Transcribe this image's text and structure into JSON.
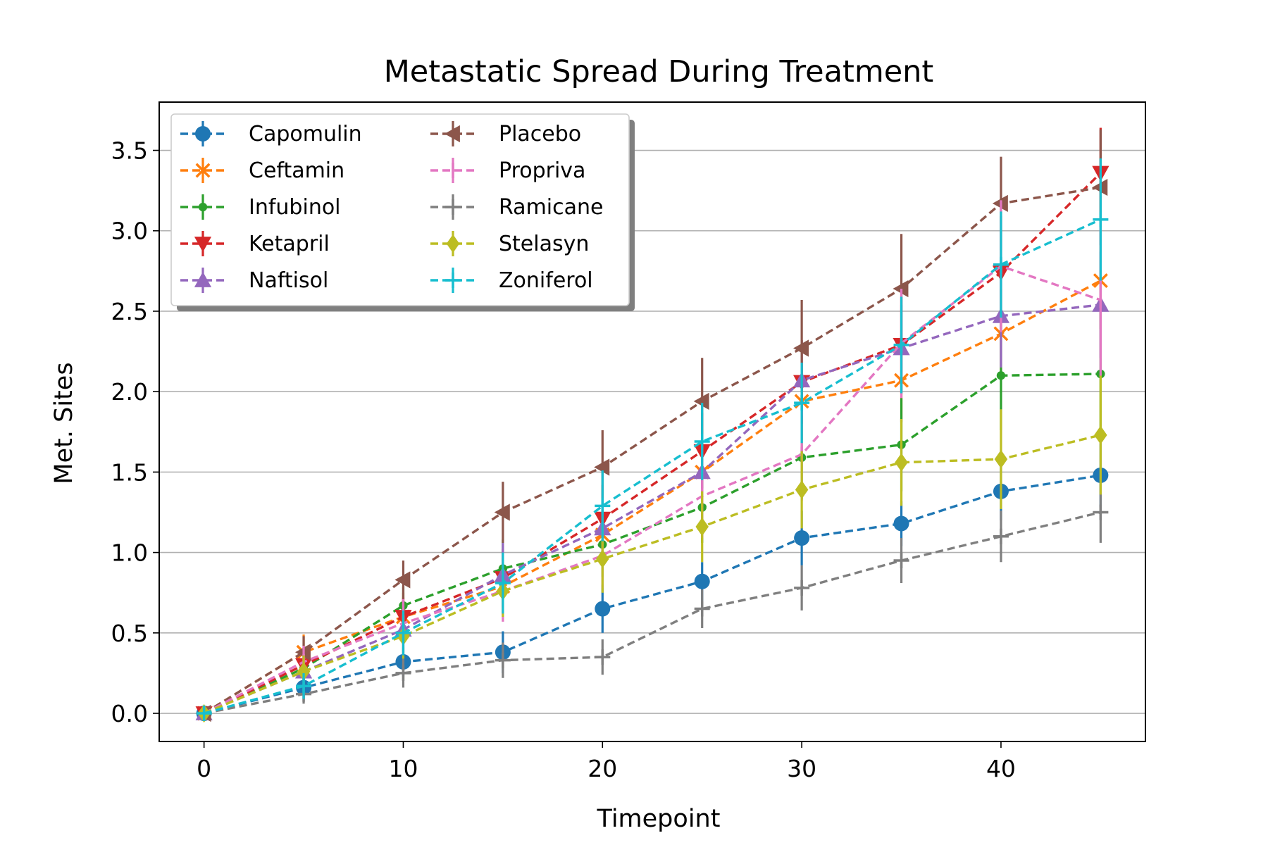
{
  "chart_data": {
    "type": "line",
    "title": "Metastatic Spread During Treatment",
    "xlabel": "Timepoint",
    "ylabel": "Met. Sites",
    "xlim": [
      -2.25,
      47.25
    ],
    "ylim": [
      -0.175,
      3.8
    ],
    "xticks": [
      "0",
      "10",
      "20",
      "30",
      "40"
    ],
    "yticks": [
      "0.0",
      "0.5",
      "1.0",
      "1.5",
      "2.0",
      "2.5",
      "3.0",
      "3.5"
    ],
    "grid": "horizontal",
    "legend_position": "upper-left",
    "x": [
      0,
      5,
      10,
      15,
      20,
      25,
      30,
      35,
      40,
      45
    ],
    "series": [
      {
        "name": "Capomulin",
        "color": "#1f77b4",
        "marker": "circle",
        "values": [
          0.0,
          0.16,
          0.32,
          0.38,
          0.65,
          0.82,
          1.09,
          1.18,
          1.38,
          1.48
        ],
        "errors": [
          0.0,
          0.07,
          0.09,
          0.13,
          0.15,
          0.12,
          0.17,
          0.14,
          0.18,
          0.2
        ]
      },
      {
        "name": "Ceftamin",
        "color": "#ff7f0e",
        "marker": "x",
        "values": [
          0.0,
          0.38,
          0.6,
          0.79,
          1.11,
          1.5,
          1.94,
          2.07,
          2.36,
          2.69
        ],
        "errors": [
          0.0,
          0.11,
          0.15,
          0.18,
          0.2,
          0.23,
          0.24,
          0.26,
          0.28,
          0.3
        ]
      },
      {
        "name": "Infubinol",
        "color": "#2ca02c",
        "marker": "point",
        "values": [
          0.0,
          0.28,
          0.67,
          0.9,
          1.05,
          1.28,
          1.59,
          1.67,
          2.1,
          2.11
        ],
        "errors": [
          0.0,
          0.1,
          0.12,
          0.18,
          0.2,
          0.22,
          0.26,
          0.29,
          0.34,
          0.4
        ]
      },
      {
        "name": "Ketapril",
        "color": "#d62728",
        "marker": "triangle-down",
        "values": [
          0.0,
          0.3,
          0.6,
          0.84,
          1.21,
          1.63,
          2.06,
          2.29,
          2.74,
          3.36
        ],
        "errors": [
          0.0,
          0.1,
          0.12,
          0.18,
          0.21,
          0.24,
          0.26,
          0.3,
          0.35,
          0.28
        ]
      },
      {
        "name": "Naftisol",
        "color": "#9467bd",
        "marker": "triangle-up",
        "values": [
          0.0,
          0.26,
          0.52,
          0.86,
          1.15,
          1.5,
          2.07,
          2.27,
          2.47,
          2.54
        ],
        "errors": [
          0.0,
          0.09,
          0.16,
          0.2,
          0.22,
          0.24,
          0.25,
          0.27,
          0.32,
          0.33
        ]
      },
      {
        "name": "Placebo",
        "color": "#8c564b",
        "marker": "triangle-left",
        "values": [
          0.0,
          0.38,
          0.83,
          1.25,
          1.53,
          1.94,
          2.27,
          2.64,
          3.17,
          3.27
        ],
        "errors": [
          0.0,
          0.1,
          0.12,
          0.19,
          0.23,
          0.27,
          0.3,
          0.34,
          0.29,
          0.36
        ]
      },
      {
        "name": "Propriva",
        "color": "#e377c2",
        "marker": "vline",
        "values": [
          0.0,
          0.32,
          0.56,
          0.76,
          0.98,
          1.35,
          1.61,
          2.3,
          2.78,
          2.57
        ],
        "errors": [
          0.0,
          0.1,
          0.15,
          0.19,
          0.2,
          0.26,
          0.29,
          0.34,
          0.41,
          0.48
        ]
      },
      {
        "name": "Ramicane",
        "color": "#7f7f7f",
        "marker": "plus",
        "values": [
          0.0,
          0.12,
          0.25,
          0.33,
          0.35,
          0.65,
          0.78,
          0.95,
          1.1,
          1.25
        ],
        "errors": [
          0.0,
          0.06,
          0.09,
          0.11,
          0.11,
          0.12,
          0.14,
          0.14,
          0.16,
          0.19
        ]
      },
      {
        "name": "Stelasyn",
        "color": "#bcbd22",
        "marker": "diamond",
        "values": [
          0.0,
          0.26,
          0.48,
          0.76,
          0.96,
          1.16,
          1.39,
          1.56,
          1.58,
          1.73
        ],
        "errors": [
          0.0,
          0.1,
          0.14,
          0.16,
          0.21,
          0.22,
          0.24,
          0.27,
          0.31,
          0.37
        ]
      },
      {
        "name": "Zoniferol",
        "color": "#17becf",
        "marker": "plus",
        "values": [
          0.0,
          0.17,
          0.5,
          0.81,
          1.29,
          1.69,
          1.93,
          2.29,
          2.79,
          3.07
        ],
        "errors": [
          0.0,
          0.08,
          0.14,
          0.19,
          0.22,
          0.24,
          0.25,
          0.3,
          0.33,
          0.38
        ]
      }
    ]
  }
}
